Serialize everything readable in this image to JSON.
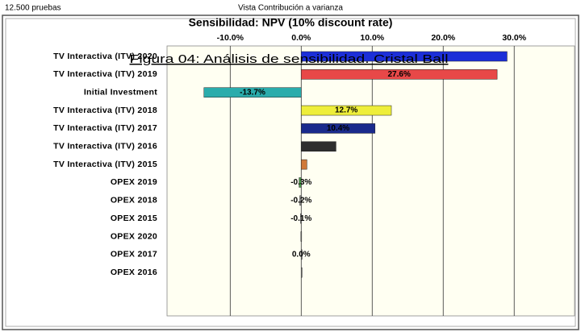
{
  "header": {
    "trials": "12.500 pruebas",
    "view": "Vista Contribución a varianza"
  },
  "caption": "Figura 04: Análisis de sensibilidad. Cristal Ball",
  "chart_data": {
    "type": "hbar",
    "title": "Sensibilidad: NPV (10% discount rate)",
    "categories": [
      "TV Interactiva (ITV) 2020",
      "TV Interactiva (ITV) 2019",
      "Initial Investment",
      "TV Interactiva (ITV) 2018",
      "TV Interactiva (ITV) 2017",
      "TV Interactiva (ITV) 2016",
      "TV Interactiva (ITV) 2015",
      "OPEX 2019",
      "OPEX 2018",
      "OPEX 2015",
      "OPEX 2020",
      "OPEX 2017",
      "OPEX 2016"
    ],
    "values": [
      29.0,
      27.6,
      -13.7,
      12.7,
      10.4,
      4.9,
      0.8,
      -0.3,
      -0.2,
      -0.1,
      -0.05,
      0.0,
      0.0
    ],
    "value_labels": [
      null,
      "27.6%",
      "-13.7%",
      "12.7%",
      "10.4%",
      null,
      null,
      "-0.3%",
      "-0.2%",
      "-0.1%",
      null,
      "0.0%",
      null
    ],
    "colors": [
      "#1c2fd8",
      "#e84848",
      "#2aacac",
      "#eeee3a",
      "#1a2a8c",
      "#2e2e2e",
      "#d07a3a",
      "#4a9a4a",
      "#888888",
      "#888888",
      "#888888",
      "#888888",
      "#888888"
    ],
    "xlim": [
      -18.9,
      38.5
    ],
    "xticks": [
      {
        "value": -10,
        "label": "-10.0%"
      },
      {
        "value": 0,
        "label": "0.0%"
      },
      {
        "value": 10,
        "label": "10.0%"
      },
      {
        "value": 20,
        "label": "20.0%"
      },
      {
        "value": 30,
        "label": "30.0%"
      }
    ],
    "grid": true
  }
}
